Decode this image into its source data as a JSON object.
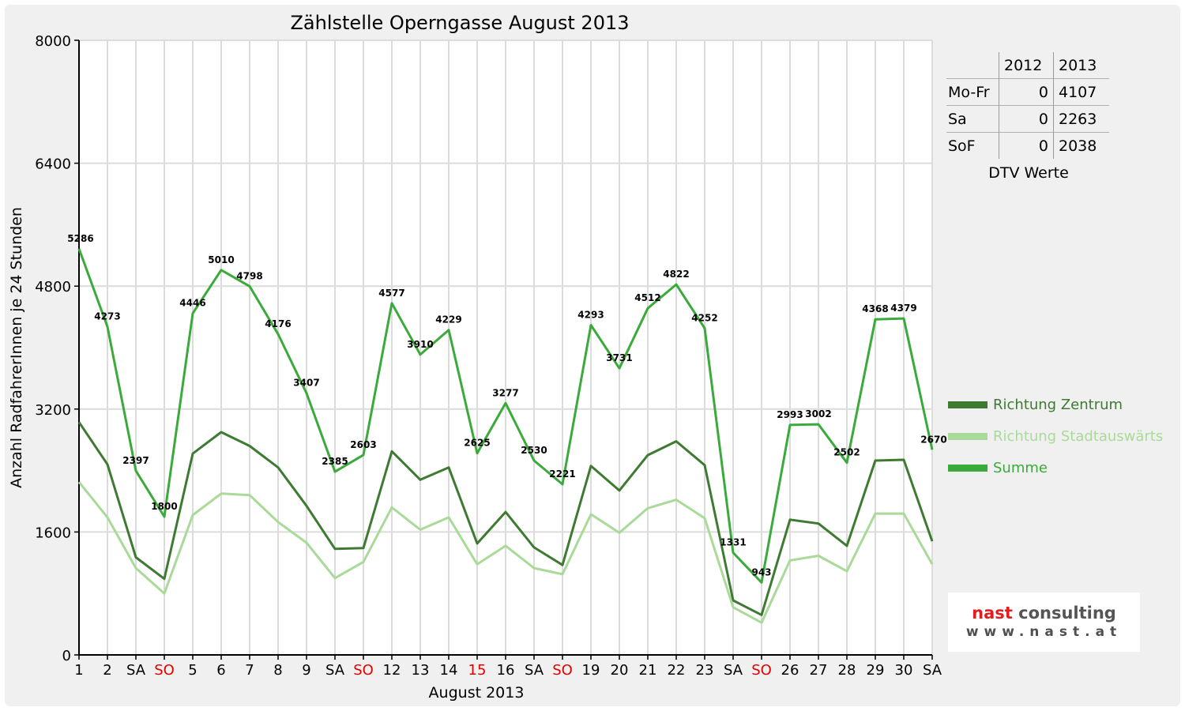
{
  "chart_data": {
    "type": "line",
    "title": "Zählstelle Operngasse August 2013",
    "xlabel": "August 2013",
    "ylabel": "Anzahl RadfahrerInnen je 24 Stunden",
    "ylim": [
      0,
      8000
    ],
    "yticks": [
      0,
      1600,
      3200,
      4800,
      6400,
      8000
    ],
    "categories": [
      "1",
      "2",
      "SA",
      "SO",
      "5",
      "6",
      "7",
      "8",
      "9",
      "SA",
      "SO",
      "12",
      "13",
      "14",
      "15",
      "16",
      "SA",
      "SO",
      "19",
      "20",
      "21",
      "22",
      "23",
      "SA",
      "SO",
      "26",
      "27",
      "28",
      "29",
      "30",
      "SA"
    ],
    "red_categories": [
      3,
      10,
      14,
      17,
      24
    ],
    "grid": true,
    "legend_position": "right",
    "series": [
      {
        "name": "Richtung Zentrum",
        "color": "#3e7a32",
        "width": 3,
        "values": [
          3030,
          2480,
          1270,
          990,
          2620,
          2900,
          2720,
          2440,
          1940,
          1380,
          1390,
          2650,
          2280,
          2440,
          1450,
          1860,
          1400,
          1170,
          2460,
          2140,
          2600,
          2780,
          2470,
          710,
          520,
          1760,
          1710,
          1420,
          2530,
          2540,
          1480
        ]
      },
      {
        "name": "Richtung Stadtauswärts",
        "color": "#a9da99",
        "width": 3,
        "values": [
          2250,
          1790,
          1130,
          800,
          1820,
          2100,
          2080,
          1730,
          1460,
          1000,
          1210,
          1920,
          1630,
          1790,
          1180,
          1420,
          1130,
          1050,
          1830,
          1590,
          1910,
          2020,
          1780,
          620,
          420,
          1230,
          1290,
          1090,
          1840,
          1840,
          1180
        ]
      },
      {
        "name": "Summe",
        "color": "#3aaa3a",
        "width": 3,
        "values": [
          5286,
          4273,
          2397,
          1800,
          4446,
          5010,
          4798,
          4176,
          3407,
          2385,
          2603,
          4577,
          3910,
          4229,
          2625,
          3277,
          2530,
          2221,
          4293,
          3731,
          4512,
          4822,
          4252,
          1331,
          943,
          2993,
          3002,
          2502,
          4368,
          4379,
          2670
        ],
        "labels": [
          "5286",
          "4273",
          "2397",
          "1800",
          "4446",
          "5010",
          "4798",
          "4176",
          "3407",
          "2385",
          "2603",
          "4577",
          "3910",
          "4229",
          "2625",
          "3277",
          "2530",
          "2221",
          "4293",
          "3731",
          "4512",
          "4822",
          "4252",
          "1331",
          "943",
          "2993",
          "3002",
          "2502",
          "4368",
          "4379",
          "2670"
        ]
      }
    ]
  },
  "dtv_table": {
    "header": [
      "",
      "2012",
      "2013"
    ],
    "rows": [
      [
        "Mo-Fr",
        "0",
        "4107"
      ],
      [
        "Sa",
        "0",
        "2263"
      ],
      [
        "SoF",
        "0",
        "2038"
      ]
    ],
    "caption": "DTV Werte"
  },
  "logo": {
    "name_part1": "nast",
    "name_part2": " consulting",
    "url": "www.nast.at"
  }
}
